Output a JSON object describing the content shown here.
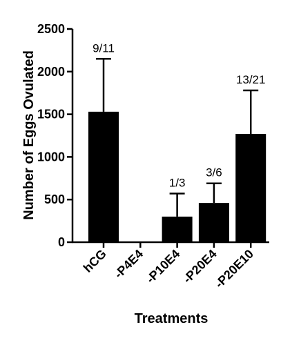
{
  "chart_data": {
    "type": "bar",
    "x_label": "Treatments",
    "y_label": "Number of Eggs Ovulated",
    "categories": [
      "hCG",
      "-P4E4",
      "-P10E4",
      "-P20E4",
      "-P20E10"
    ],
    "values": [
      1530,
      0,
      300,
      460,
      1270
    ],
    "errors": [
      620,
      null,
      270,
      230,
      510
    ],
    "annotations": [
      "9/11",
      null,
      "1/3",
      "3/6",
      "13/21"
    ],
    "color": "#000000",
    "ylim": [
      0,
      2500
    ],
    "yticks": [
      0,
      500,
      1000,
      1500,
      2000,
      2500
    ],
    "grid": false
  }
}
